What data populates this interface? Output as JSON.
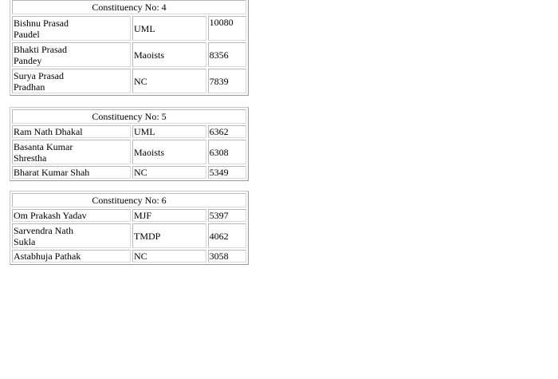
{
  "constituencies": [
    {
      "title": "Constituency No: 4",
      "rows": [
        {
          "name_lines": [
            "Bishnu Prasad",
            "Paudel"
          ],
          "party": "UML",
          "votes": "10080"
        },
        {
          "name_lines": [
            "Bhakti Prasad",
            "Pandey"
          ],
          "party": "Maoists",
          "votes": "8356"
        },
        {
          "name_lines": [
            "Surya Prasad",
            "Pradhan"
          ],
          "party": "NC",
          "votes": "7839"
        }
      ]
    },
    {
      "title": "Constituency No: 5",
      "rows": [
        {
          "name_lines": [
            "Ram Nath Dhakal"
          ],
          "party": "UML",
          "votes": "6362"
        },
        {
          "name_lines": [
            "Basanta Kumar",
            "Shrestha"
          ],
          "party": "Maoists",
          "votes": "6308"
        },
        {
          "name_lines": [
            "Bharat Kumar Shah"
          ],
          "party": "NC",
          "votes": "5349"
        }
      ]
    },
    {
      "title": "Constituency No: 6",
      "rows": [
        {
          "name_lines": [
            "Om Prakash Yadav"
          ],
          "party": "MJF",
          "votes": "5397"
        },
        {
          "name_lines": [
            "Sarvendra Nath",
            "Sukla"
          ],
          "party": "TMDP",
          "votes": "4062"
        },
        {
          "name_lines": [
            "Astabhuja Pathak"
          ],
          "party": "NC",
          "votes": "3058"
        }
      ]
    }
  ]
}
